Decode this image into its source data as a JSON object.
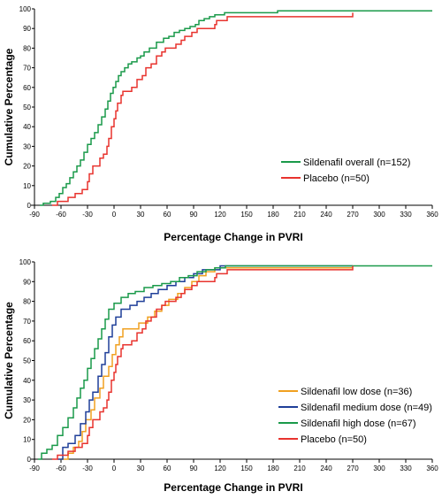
{
  "chart_data": [
    {
      "type": "line",
      "xlabel": "Percentage Change in PVRI",
      "ylabel": "Cumulative Percentage",
      "xlim": [
        -90,
        360
      ],
      "ylim": [
        0,
        100
      ],
      "xticks": [
        "-90",
        "-60",
        "-30",
        "0",
        "30",
        "60",
        "90",
        "120",
        "150",
        "180",
        "210",
        "240",
        "270",
        "300",
        "330",
        "360"
      ],
      "yticks": [
        "0",
        "10",
        "20",
        "30",
        "40",
        "50",
        "60",
        "70",
        "80",
        "90",
        "100"
      ],
      "grid": false,
      "legend_position": "bottom-right",
      "series": [
        {
          "name": "Sildenafil overall (n=152)",
          "color": "#1a9a4a",
          "points": [
            [
              -84,
              0
            ],
            [
              -80,
              1
            ],
            [
              -72,
              2
            ],
            [
              -66,
              4
            ],
            [
              -62,
              6
            ],
            [
              -58,
              9
            ],
            [
              -54,
              11
            ],
            [
              -50,
              14
            ],
            [
              -46,
              17
            ],
            [
              -42,
              20
            ],
            [
              -38,
              23
            ],
            [
              -34,
              27
            ],
            [
              -30,
              31
            ],
            [
              -26,
              34
            ],
            [
              -22,
              37
            ],
            [
              -18,
              41
            ],
            [
              -14,
              45
            ],
            [
              -10,
              49
            ],
            [
              -7,
              53
            ],
            [
              -4,
              57
            ],
            [
              -1,
              60
            ],
            [
              2,
              63
            ],
            [
              5,
              66
            ],
            [
              8,
              68
            ],
            [
              12,
              70
            ],
            [
              16,
              72
            ],
            [
              20,
              73
            ],
            [
              26,
              75
            ],
            [
              30,
              76
            ],
            [
              34,
              78
            ],
            [
              40,
              80
            ],
            [
              48,
              83
            ],
            [
              56,
              85
            ],
            [
              62,
              86
            ],
            [
              68,
              88
            ],
            [
              74,
              89
            ],
            [
              80,
              90
            ],
            [
              86,
              91
            ],
            [
              92,
              92
            ],
            [
              96,
              94
            ],
            [
              102,
              95
            ],
            [
              108,
              96
            ],
            [
              114,
              97
            ],
            [
              125,
              98
            ],
            [
              185,
              99
            ],
            [
              270,
              99
            ],
            [
              360,
              99
            ]
          ]
        },
        {
          "name": "Placebo (n=50)",
          "color": "#e8332e",
          "points": [
            [
              -70,
              0
            ],
            [
              -64,
              2
            ],
            [
              -52,
              4
            ],
            [
              -44,
              6
            ],
            [
              -36,
              8
            ],
            [
              -30,
              12
            ],
            [
              -28,
              16
            ],
            [
              -24,
              20
            ],
            [
              -16,
              24
            ],
            [
              -12,
              26
            ],
            [
              -8,
              30
            ],
            [
              -6,
              34
            ],
            [
              -3,
              40
            ],
            [
              0,
              44
            ],
            [
              2,
              48
            ],
            [
              4,
              52
            ],
            [
              8,
              56
            ],
            [
              10,
              58
            ],
            [
              20,
              60
            ],
            [
              26,
              64
            ],
            [
              32,
              66
            ],
            [
              36,
              70
            ],
            [
              42,
              72
            ],
            [
              48,
              76
            ],
            [
              54,
              78
            ],
            [
              58,
              80
            ],
            [
              70,
              82
            ],
            [
              76,
              84
            ],
            [
              80,
              86
            ],
            [
              88,
              88
            ],
            [
              94,
              90
            ],
            [
              114,
              92
            ],
            [
              116,
              94
            ],
            [
              128,
              96
            ],
            [
              185,
              96
            ],
            [
              270,
              98
            ]
          ]
        }
      ]
    },
    {
      "type": "line",
      "xlabel": "Percentage Change in PVRI",
      "ylabel": "Cumulative Percentage",
      "xlim": [
        -90,
        360
      ],
      "ylim": [
        0,
        100
      ],
      "xticks": [
        "-90",
        "-60",
        "-30",
        "0",
        "30",
        "60",
        "90",
        "120",
        "150",
        "180",
        "210",
        "240",
        "270",
        "300",
        "330",
        "360"
      ],
      "yticks": [
        "0",
        "10",
        "20",
        "30",
        "40",
        "50",
        "60",
        "70",
        "80",
        "90",
        "100"
      ],
      "grid": false,
      "legend_position": "bottom-right",
      "series": [
        {
          "name": "Sildenafil low dose (n=36)",
          "color": "#f0a020",
          "points": [
            [
              -60,
              0
            ],
            [
              -52,
              3
            ],
            [
              -46,
              6
            ],
            [
              -40,
              9
            ],
            [
              -36,
              14
            ],
            [
              -32,
              20
            ],
            [
              -26,
              25
            ],
            [
              -22,
              31
            ],
            [
              -16,
              36
            ],
            [
              -12,
              42
            ],
            [
              -6,
              47
            ],
            [
              -2,
              53
            ],
            [
              2,
              58
            ],
            [
              6,
              62
            ],
            [
              10,
              66
            ],
            [
              22,
              66
            ],
            [
              28,
              69
            ],
            [
              38,
              72
            ],
            [
              46,
              75
            ],
            [
              54,
              78
            ],
            [
              62,
              81
            ],
            [
              72,
              84
            ],
            [
              80,
              87
            ],
            [
              88,
              90
            ],
            [
              96,
              93
            ],
            [
              104,
              95
            ],
            [
              114,
              97
            ],
            [
              270,
              97
            ]
          ]
        },
        {
          "name": "Sildenafil medium dose (n=49)",
          "color": "#1f3f99",
          "points": [
            [
              -64,
              0
            ],
            [
              -58,
              6
            ],
            [
              -52,
              8
            ],
            [
              -44,
              12
            ],
            [
              -38,
              18
            ],
            [
              -32,
              24
            ],
            [
              -28,
              30
            ],
            [
              -24,
              34
            ],
            [
              -18,
              42
            ],
            [
              -14,
              48
            ],
            [
              -10,
              54
            ],
            [
              -6,
              62
            ],
            [
              -2,
              68
            ],
            [
              2,
              72
            ],
            [
              8,
              76
            ],
            [
              18,
              78
            ],
            [
              26,
              80
            ],
            [
              34,
              82
            ],
            [
              42,
              84
            ],
            [
              50,
              86
            ],
            [
              60,
              88
            ],
            [
              70,
              90
            ],
            [
              80,
              92
            ],
            [
              90,
              94
            ],
            [
              100,
              96
            ],
            [
              110,
              96
            ],
            [
              120,
              98
            ],
            [
              270,
              98
            ]
          ]
        },
        {
          "name": "Sildenafil high dose (n=67)",
          "color": "#1a9a4a",
          "points": [
            [
              -86,
              0
            ],
            [
              -82,
              3
            ],
            [
              -76,
              5
            ],
            [
              -70,
              7
            ],
            [
              -64,
              12
            ],
            [
              -58,
              16
            ],
            [
              -52,
              21
            ],
            [
              -46,
              26
            ],
            [
              -42,
              31
            ],
            [
              -38,
              36
            ],
            [
              -34,
              40
            ],
            [
              -30,
              46
            ],
            [
              -26,
              51
            ],
            [
              -22,
              56
            ],
            [
              -18,
              61
            ],
            [
              -14,
              66
            ],
            [
              -10,
              71
            ],
            [
              -6,
              76
            ],
            [
              0,
              79
            ],
            [
              8,
              82
            ],
            [
              16,
              84
            ],
            [
              24,
              85
            ],
            [
              34,
              87
            ],
            [
              44,
              88
            ],
            [
              54,
              89
            ],
            [
              64,
              90
            ],
            [
              74,
              92
            ],
            [
              84,
              93
            ],
            [
              94,
              95
            ],
            [
              104,
              96
            ],
            [
              114,
              97
            ],
            [
              126,
              98
            ],
            [
              185,
              98
            ],
            [
              360,
              98
            ]
          ]
        },
        {
          "name": "Placebo (n=50)",
          "color": "#e8332e",
          "points": [
            [
              -70,
              0
            ],
            [
              -64,
              2
            ],
            [
              -52,
              4
            ],
            [
              -44,
              6
            ],
            [
              -36,
              8
            ],
            [
              -30,
              12
            ],
            [
              -28,
              16
            ],
            [
              -24,
              20
            ],
            [
              -16,
              24
            ],
            [
              -12,
              26
            ],
            [
              -8,
              30
            ],
            [
              -6,
              34
            ],
            [
              -3,
              40
            ],
            [
              0,
              44
            ],
            [
              2,
              48
            ],
            [
              4,
              52
            ],
            [
              8,
              56
            ],
            [
              10,
              58
            ],
            [
              20,
              60
            ],
            [
              26,
              64
            ],
            [
              32,
              66
            ],
            [
              36,
              70
            ],
            [
              42,
              72
            ],
            [
              48,
              76
            ],
            [
              54,
              78
            ],
            [
              58,
              80
            ],
            [
              70,
              82
            ],
            [
              76,
              84
            ],
            [
              80,
              86
            ],
            [
              88,
              88
            ],
            [
              94,
              90
            ],
            [
              114,
              92
            ],
            [
              116,
              94
            ],
            [
              128,
              96
            ],
            [
              185,
              96
            ],
            [
              270,
              98
            ]
          ]
        }
      ]
    }
  ]
}
